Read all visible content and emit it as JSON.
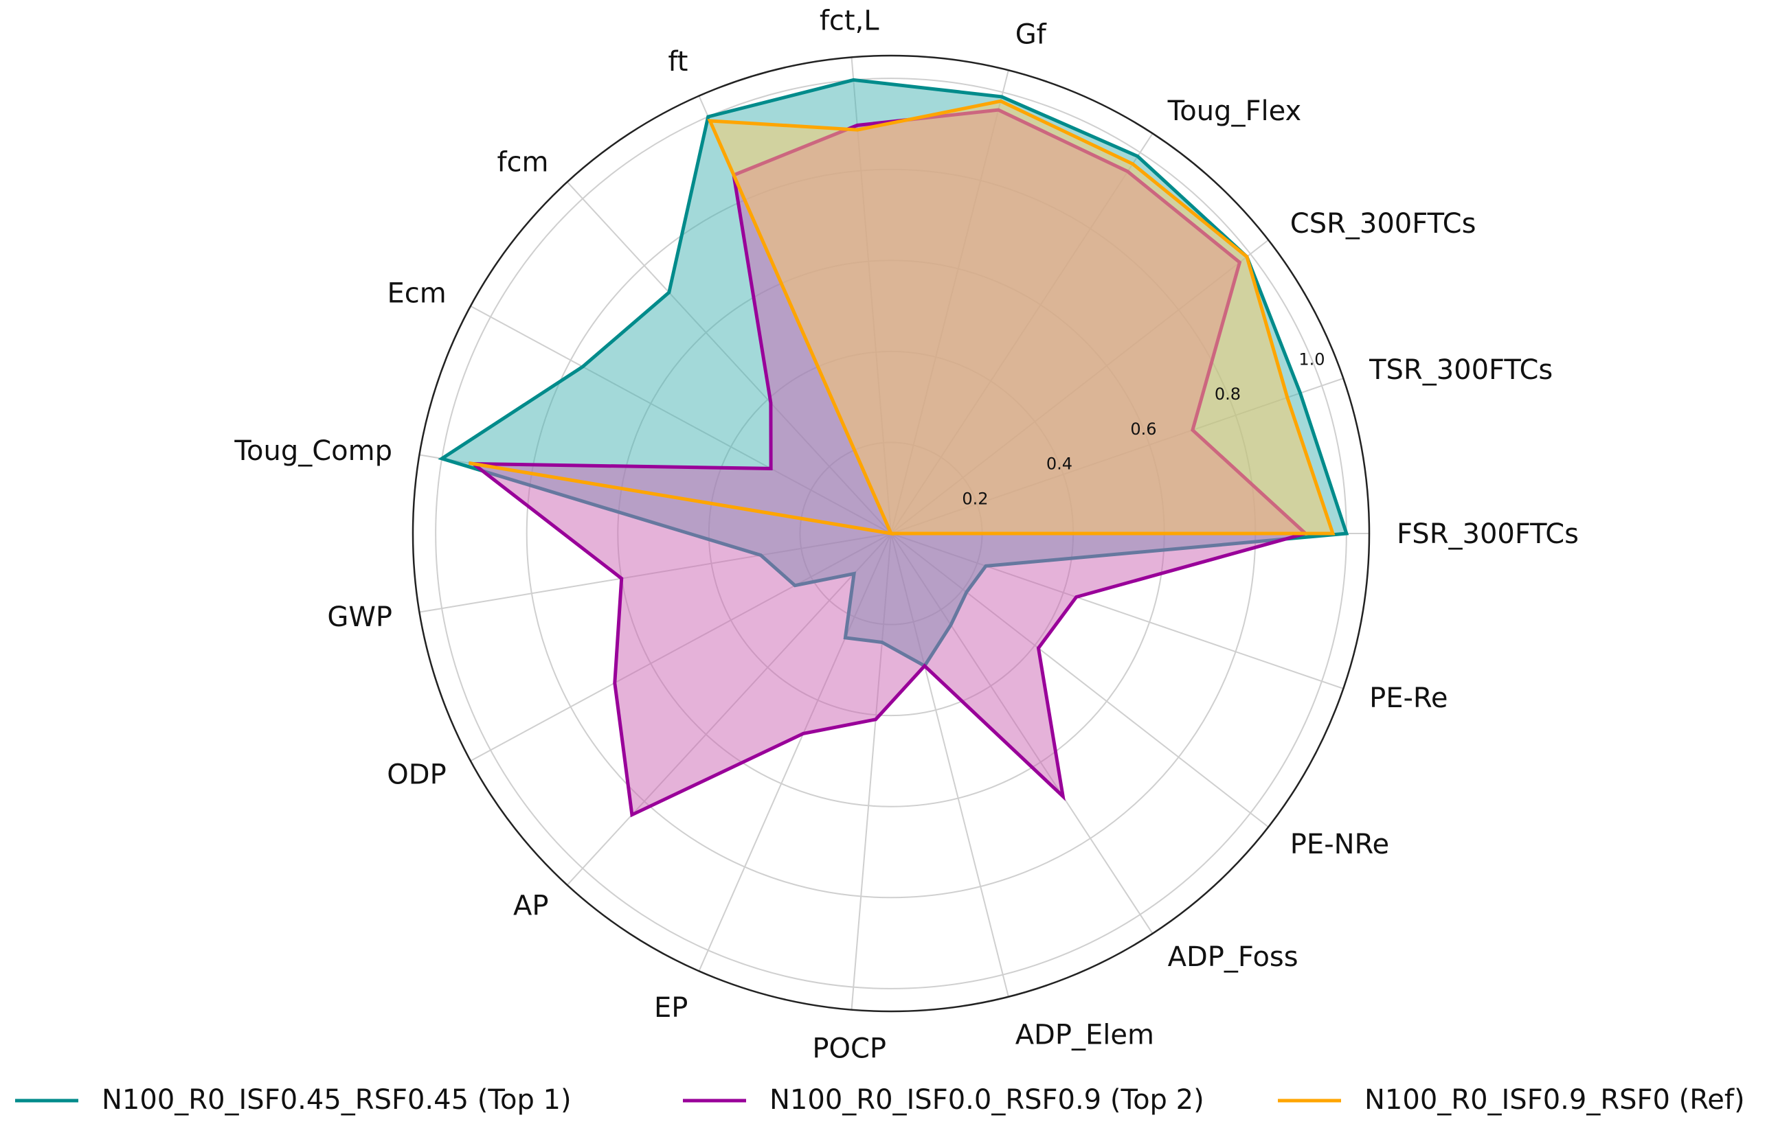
{
  "chart_data": {
    "type": "radar",
    "categories": [
      "FSR_300FTCs",
      "TSR_300FTCs",
      "CSR_300FTCs",
      "Toug_Flex",
      "Gf",
      "fct,L",
      "ft",
      "fcm",
      "Ecm",
      "Toug_Comp",
      "GWP",
      "ODP",
      "AP",
      "EP",
      "POCP",
      "ADP_Elem",
      "ADP_Foss",
      "PE-NRe",
      "PE-Re"
    ],
    "radial_ticks": [
      0.2,
      0.4,
      0.6,
      0.8,
      1.0
    ],
    "radial_tick_labels": [
      "0.2",
      "0.4",
      "0.6",
      "0.8",
      "1.0"
    ],
    "rlim": [
      0,
      1.05
    ],
    "grid": true,
    "legend_position": "bottom",
    "series": [
      {
        "name": "N100_R0_ISF0.45_RSF0.45 (Top 1)",
        "color": "#008b8b",
        "fill": "#48b4b4",
        "values": [
          1.0,
          0.95,
          0.99,
          0.99,
          0.99,
          1.0,
          1.0,
          0.72,
          0.77,
          1.0,
          0.29,
          0.24,
          0.12,
          0.25,
          0.24,
          0.3,
          0.24,
          0.21,
          0.22
        ]
      },
      {
        "name": "N100_R0_ISF0.0_RSF0.9 (Top 2)",
        "color": "#990099",
        "fill": "#cc66b3",
        "values": [
          0.91,
          0.7,
          0.97,
          0.95,
          0.96,
          0.9,
          0.86,
          0.39,
          0.3,
          0.93,
          0.6,
          0.69,
          0.84,
          0.48,
          0.41,
          0.3,
          0.69,
          0.41,
          0.43
        ]
      },
      {
        "name": "N100_R0_ISF0.9_RSF0 (Ref)",
        "color": "#ffa500",
        "fill": "#ffcc66",
        "values": [
          0.97,
          0.92,
          0.99,
          0.97,
          0.98,
          0.89,
          0.99,
          0.0,
          0.0,
          0.94,
          0.0,
          0.0,
          0.0,
          0.0,
          0.0,
          0.0,
          0.0,
          0.0,
          0.0
        ]
      }
    ]
  }
}
